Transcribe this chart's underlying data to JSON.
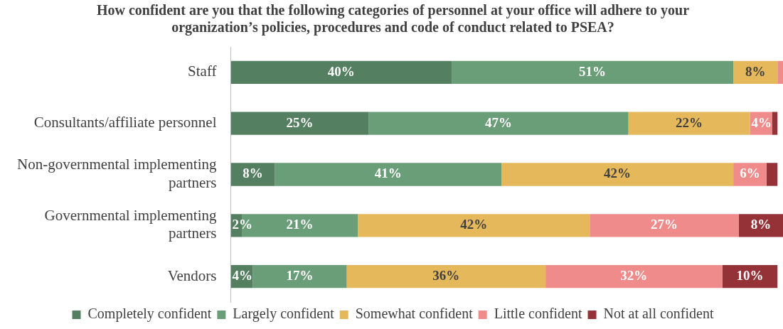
{
  "chart_data": {
    "type": "bar",
    "orientation": "horizontal",
    "stacked": true,
    "title": "How confident are you that the following categories of personnel at your office will adhere to your organization’s policies, procedures and code of conduct related to PSEA?",
    "categories": [
      "Staff",
      "Consultants/affiliate personnel",
      "Non-governmental implementing partners",
      "Governmental implementing partners",
      "Vendors"
    ],
    "xlim": [
      0,
      100
    ],
    "series": [
      {
        "name": "Completely confident",
        "color": "#548061",
        "values": [
          40,
          25,
          8,
          2,
          4
        ],
        "value_labels": [
          "40%",
          "25%",
          "8%",
          "2%",
          "4%"
        ]
      },
      {
        "name": "Largely confident",
        "color": "#6a9e78",
        "values": [
          51,
          47,
          41,
          21,
          17
        ],
        "value_labels": [
          "51%",
          "47%",
          "41%",
          "21%",
          "17%"
        ]
      },
      {
        "name": "Somewhat confident",
        "color": "#e6b85c",
        "values": [
          8,
          22,
          42,
          42,
          36
        ],
        "value_labels": [
          "8%",
          "22%",
          "42%",
          "42%",
          "36%"
        ]
      },
      {
        "name": "Little confident",
        "color": "#f08b8b",
        "values": [
          1,
          4,
          6,
          27,
          32
        ],
        "value_labels": [
          null,
          "4%",
          "6%",
          "27%",
          "32%"
        ]
      },
      {
        "name": "Not at all confident",
        "color": "#943237",
        "values": [
          0,
          1,
          2,
          8,
          10
        ],
        "value_labels": [
          null,
          null,
          null,
          "8%",
          "10%"
        ]
      }
    ],
    "legend": "bottom",
    "grid": false,
    "tick_labels": "y"
  }
}
